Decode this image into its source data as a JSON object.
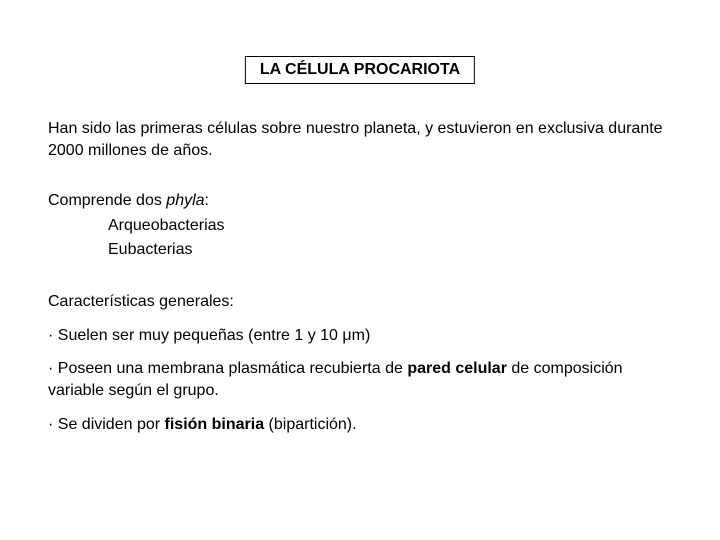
{
  "title": "LA CÉLULA PROCARIOTA",
  "intro": "Han sido las primeras células sobre nuestro planeta, y estuvieron en exclusiva durante 2000 millones de años.",
  "phyla": {
    "prefix": "Comprende dos ",
    "italic": "phyla",
    "suffix": ":",
    "items": [
      "Arqueobacterias",
      "Eubacterias"
    ]
  },
  "section_label": "Características generales:",
  "bullets": {
    "b1": "· Suelen ser muy pequeñas (entre 1 y 10 μm)",
    "b2_pre": "· Poseen una membrana plasmática recubierta de ",
    "b2_bold": "pared celular",
    "b2_post": " de composición variable según el grupo.",
    "b3_pre": "· Se dividen por ",
    "b3_bold": "fisión binaria",
    "b3_post": " (bipartición)."
  },
  "colors": {
    "background": "#ffffff",
    "text": "#000000",
    "border": "#000000"
  },
  "typography": {
    "font_family": "Verdana",
    "title_fontsize": 16,
    "body_fontsize": 16,
    "title_weight": "bold"
  }
}
